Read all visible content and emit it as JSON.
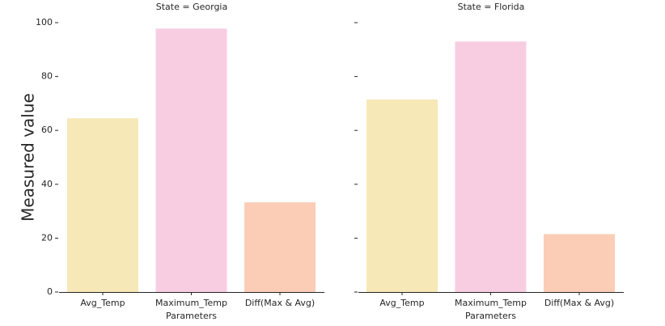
{
  "chart_data": {
    "type": "bar",
    "ylabel": "Measured value",
    "xlabel": "Parameters",
    "ylim": [
      0,
      100
    ],
    "yticks": [
      0,
      20,
      40,
      60,
      80,
      100
    ],
    "grid": false,
    "categories": [
      "Avg_Temp",
      "Maximum_Temp",
      "Diff(Max & Avg)"
    ],
    "colors": [
      "#f7e8b8",
      "#f8cde2",
      "#fbcdb6"
    ],
    "panels": [
      {
        "title": "State = Georgia",
        "values": [
          64.5,
          97.8,
          33.3
        ]
      },
      {
        "title": "State = Florida",
        "values": [
          71.5,
          93.0,
          21.5
        ]
      }
    ]
  }
}
